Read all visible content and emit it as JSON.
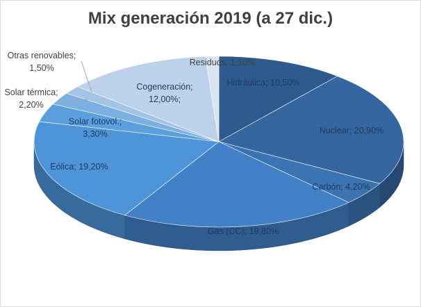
{
  "chart_data": {
    "type": "pie",
    "style": "3d",
    "title": "Mix generación 2019 (a 27 dic.)",
    "series": [
      {
        "values": [
          10.5,
          20.9,
          4.2,
          19.8,
          19.2,
          3.3,
          2.2,
          1.5,
          12.0,
          1.1
        ],
        "labels": [
          [
            "Hidráulica; 10,50%"
          ],
          [
            "Nuclear; 20,90%"
          ],
          [
            "Carbón; 4,20%"
          ],
          [
            "Gas (CC); 19,80%"
          ],
          [
            "Eólica; 19,20%"
          ],
          [
            "Solar fotovol.;",
            "3,30%"
          ],
          [
            "Solar térmica;",
            "2,20%"
          ],
          [
            "Otras renovables;",
            "1,50%"
          ],
          [
            "Cogeneración;",
            "12,00%;"
          ],
          [
            "Residuos; 1,10%"
          ]
        ],
        "colors": [
          "#2e5b8e",
          "#3566a0",
          "#3c73b2",
          "#4281c7",
          "#4d94d9",
          "#5b9fde",
          "#7cb0e2",
          "#a3c4e7",
          "#bcd2ea",
          "#d9e4f0"
        ]
      }
    ],
    "legend": "none",
    "data_labels": "inside/outside with leader lines"
  }
}
